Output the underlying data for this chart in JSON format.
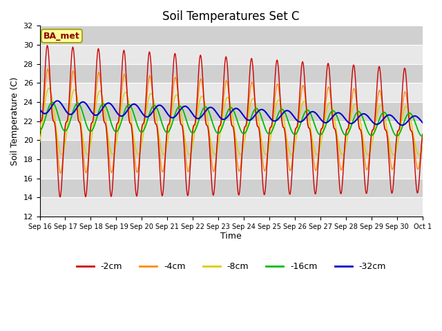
{
  "title": "Soil Temperatures Set C",
  "xlabel": "Time",
  "ylabel": "Soil Temperature (C)",
  "annotation": "BA_met",
  "ylim": [
    12,
    32
  ],
  "yticks": [
    12,
    14,
    16,
    18,
    20,
    22,
    24,
    26,
    28,
    30,
    32
  ],
  "colors": {
    "-2cm": "#cc0000",
    "-4cm": "#ff8800",
    "-8cm": "#ddcc00",
    "-16cm": "#00bb00",
    "-32cm": "#0000cc"
  },
  "date_labels": [
    "Sep 16",
    "Sep 17",
    "Sep 18",
    "Sep 19",
    "Sep 20",
    "Sep 21",
    "Sep 22",
    "Sep 23",
    "Sep 24",
    "Sep 25",
    "Sep 26",
    "Sep 27",
    "Sep 28",
    "Sep 29",
    "Sep 30",
    "Oct 1"
  ],
  "n_days": 15,
  "points_per_day": 48,
  "background_color": "#ffffff",
  "plot_bg_light": "#e8e8e8",
  "plot_bg_dark": "#d0d0d0",
  "grid_color": "#ffffff",
  "annotation_bg": "#ffff99",
  "annotation_border": "#999900",
  "annotation_text_color": "#880000",
  "title_fontsize": 12,
  "axis_label_fontsize": 9,
  "tick_fontsize": 8,
  "legend_fontsize": 9
}
